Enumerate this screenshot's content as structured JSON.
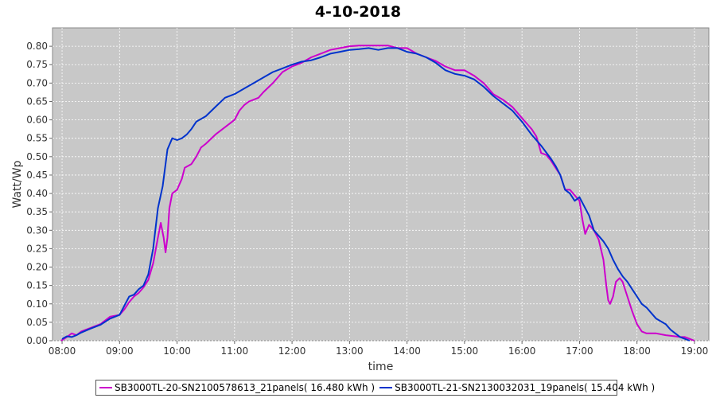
{
  "chart_data": {
    "type": "line",
    "title": "4-10-2018",
    "xlabel": "time",
    "ylabel": "Watt/Wp",
    "xlim": [
      "07:50",
      "19:15"
    ],
    "ylim": [
      0,
      0.85
    ],
    "grid": true,
    "legend_position": "bottom",
    "x_ticks": [
      "08:00",
      "09:00",
      "10:00",
      "11:00",
      "12:00",
      "13:00",
      "14:00",
      "15:00",
      "16:00",
      "17:00",
      "18:00",
      "19:00"
    ],
    "y_ticks": [
      "0.00",
      "0.05",
      "0.10",
      "0.15",
      "0.20",
      "0.25",
      "0.30",
      "0.35",
      "0.40",
      "0.45",
      "0.50",
      "0.55",
      "0.60",
      "0.65",
      "0.70",
      "0.75",
      "0.80"
    ],
    "series": [
      {
        "name": "SB3000TL-20-SN2100578613_21panels( 16.480 kWh )",
        "color": "#cc00cc",
        "points": [
          [
            "07:59",
            0.0
          ],
          [
            "08:05",
            0.01
          ],
          [
            "08:10",
            0.02
          ],
          [
            "08:15",
            0.015
          ],
          [
            "08:20",
            0.025
          ],
          [
            "08:30",
            0.035
          ],
          [
            "08:40",
            0.045
          ],
          [
            "08:50",
            0.065
          ],
          [
            "09:00",
            0.07
          ],
          [
            "09:05",
            0.085
          ],
          [
            "09:10",
            0.105
          ],
          [
            "09:15",
            0.12
          ],
          [
            "09:20",
            0.13
          ],
          [
            "09:25",
            0.145
          ],
          [
            "09:30",
            0.165
          ],
          [
            "09:35",
            0.21
          ],
          [
            "09:40",
            0.28
          ],
          [
            "09:43",
            0.32
          ],
          [
            "09:46",
            0.28
          ],
          [
            "09:48",
            0.24
          ],
          [
            "09:50",
            0.28
          ],
          [
            "09:52",
            0.36
          ],
          [
            "09:55",
            0.4
          ],
          [
            "10:00",
            0.41
          ],
          [
            "10:05",
            0.44
          ],
          [
            "10:08",
            0.47
          ],
          [
            "10:15",
            0.48
          ],
          [
            "10:20",
            0.5
          ],
          [
            "10:25",
            0.525
          ],
          [
            "10:30",
            0.535
          ],
          [
            "10:40",
            0.56
          ],
          [
            "10:50",
            0.58
          ],
          [
            "11:00",
            0.6
          ],
          [
            "11:05",
            0.625
          ],
          [
            "11:10",
            0.64
          ],
          [
            "11:15",
            0.65
          ],
          [
            "11:20",
            0.655
          ],
          [
            "11:25",
            0.66
          ],
          [
            "11:30",
            0.675
          ],
          [
            "11:40",
            0.7
          ],
          [
            "11:50",
            0.73
          ],
          [
            "12:00",
            0.745
          ],
          [
            "12:10",
            0.755
          ],
          [
            "12:20",
            0.77
          ],
          [
            "12:30",
            0.78
          ],
          [
            "12:40",
            0.79
          ],
          [
            "12:50",
            0.795
          ],
          [
            "13:00",
            0.8
          ],
          [
            "13:10",
            0.802
          ],
          [
            "13:20",
            0.802
          ],
          [
            "13:30",
            0.802
          ],
          [
            "13:40",
            0.802
          ],
          [
            "13:50",
            0.795
          ],
          [
            "14:00",
            0.795
          ],
          [
            "14:10",
            0.78
          ],
          [
            "14:20",
            0.77
          ],
          [
            "14:30",
            0.76
          ],
          [
            "14:40",
            0.745
          ],
          [
            "14:50",
            0.735
          ],
          [
            "15:00",
            0.735
          ],
          [
            "15:10",
            0.72
          ],
          [
            "15:20",
            0.7
          ],
          [
            "15:30",
            0.67
          ],
          [
            "15:40",
            0.655
          ],
          [
            "15:50",
            0.635
          ],
          [
            "16:00",
            0.605
          ],
          [
            "16:10",
            0.575
          ],
          [
            "16:15",
            0.555
          ],
          [
            "16:20",
            0.51
          ],
          [
            "16:25",
            0.505
          ],
          [
            "16:30",
            0.49
          ],
          [
            "16:35",
            0.47
          ],
          [
            "16:40",
            0.45
          ],
          [
            "16:45",
            0.41
          ],
          [
            "16:50",
            0.41
          ],
          [
            "16:55",
            0.395
          ],
          [
            "17:00",
            0.38
          ],
          [
            "17:03",
            0.33
          ],
          [
            "17:06",
            0.29
          ],
          [
            "17:10",
            0.315
          ],
          [
            "17:15",
            0.3
          ],
          [
            "17:20",
            0.275
          ],
          [
            "17:25",
            0.22
          ],
          [
            "17:28",
            0.15
          ],
          [
            "17:30",
            0.11
          ],
          [
            "17:32",
            0.1
          ],
          [
            "17:35",
            0.12
          ],
          [
            "17:38",
            0.16
          ],
          [
            "17:42",
            0.17
          ],
          [
            "17:45",
            0.16
          ],
          [
            "17:50",
            0.12
          ],
          [
            "17:55",
            0.08
          ],
          [
            "18:00",
            0.045
          ],
          [
            "18:05",
            0.025
          ],
          [
            "18:10",
            0.02
          ],
          [
            "18:20",
            0.02
          ],
          [
            "18:30",
            0.015
          ],
          [
            "18:40",
            0.012
          ],
          [
            "18:45",
            0.01
          ],
          [
            "18:50",
            0.01
          ],
          [
            "18:55",
            0.005
          ],
          [
            "19:00",
            0.0
          ]
        ]
      },
      {
        "name": "SB3000TL-21-SN2130032031_19panels( 15.404 kWh )",
        "color": "#0033cc",
        "points": [
          [
            "08:00",
            0.005
          ],
          [
            "08:05",
            0.012
          ],
          [
            "08:10",
            0.01
          ],
          [
            "08:15",
            0.015
          ],
          [
            "08:20",
            0.022
          ],
          [
            "08:30",
            0.033
          ],
          [
            "08:40",
            0.043
          ],
          [
            "08:50",
            0.06
          ],
          [
            "09:00",
            0.07
          ],
          [
            "09:05",
            0.095
          ],
          [
            "09:10",
            0.12
          ],
          [
            "09:15",
            0.125
          ],
          [
            "09:20",
            0.14
          ],
          [
            "09:25",
            0.15
          ],
          [
            "09:30",
            0.18
          ],
          [
            "09:35",
            0.25
          ],
          [
            "09:40",
            0.36
          ],
          [
            "09:45",
            0.42
          ],
          [
            "09:50",
            0.52
          ],
          [
            "09:55",
            0.55
          ],
          [
            "10:00",
            0.545
          ],
          [
            "10:05",
            0.55
          ],
          [
            "10:10",
            0.56
          ],
          [
            "10:15",
            0.575
          ],
          [
            "10:20",
            0.595
          ],
          [
            "10:30",
            0.61
          ],
          [
            "10:40",
            0.635
          ],
          [
            "10:50",
            0.66
          ],
          [
            "11:00",
            0.67
          ],
          [
            "11:10",
            0.685
          ],
          [
            "11:20",
            0.7
          ],
          [
            "11:30",
            0.715
          ],
          [
            "11:40",
            0.73
          ],
          [
            "11:50",
            0.74
          ],
          [
            "12:00",
            0.75
          ],
          [
            "12:10",
            0.758
          ],
          [
            "12:20",
            0.762
          ],
          [
            "12:30",
            0.77
          ],
          [
            "12:40",
            0.78
          ],
          [
            "12:50",
            0.785
          ],
          [
            "13:00",
            0.79
          ],
          [
            "13:10",
            0.792
          ],
          [
            "13:20",
            0.795
          ],
          [
            "13:30",
            0.79
          ],
          [
            "13:40",
            0.795
          ],
          [
            "13:50",
            0.795
          ],
          [
            "14:00",
            0.785
          ],
          [
            "14:10",
            0.78
          ],
          [
            "14:20",
            0.77
          ],
          [
            "14:30",
            0.755
          ],
          [
            "14:40",
            0.735
          ],
          [
            "14:50",
            0.725
          ],
          [
            "15:00",
            0.72
          ],
          [
            "15:10",
            0.71
          ],
          [
            "15:20",
            0.69
          ],
          [
            "15:30",
            0.665
          ],
          [
            "15:40",
            0.645
          ],
          [
            "15:50",
            0.625
          ],
          [
            "16:00",
            0.595
          ],
          [
            "16:10",
            0.56
          ],
          [
            "16:20",
            0.53
          ],
          [
            "16:30",
            0.495
          ],
          [
            "16:35",
            0.475
          ],
          [
            "16:40",
            0.45
          ],
          [
            "16:45",
            0.41
          ],
          [
            "16:50",
            0.4
          ],
          [
            "16:55",
            0.38
          ],
          [
            "17:00",
            0.39
          ],
          [
            "17:05",
            0.365
          ],
          [
            "17:10",
            0.34
          ],
          [
            "17:15",
            0.3
          ],
          [
            "17:20",
            0.285
          ],
          [
            "17:25",
            0.27
          ],
          [
            "17:30",
            0.25
          ],
          [
            "17:35",
            0.22
          ],
          [
            "17:40",
            0.195
          ],
          [
            "17:45",
            0.175
          ],
          [
            "17:50",
            0.16
          ],
          [
            "17:55",
            0.14
          ],
          [
            "18:00",
            0.12
          ],
          [
            "18:05",
            0.1
          ],
          [
            "18:10",
            0.09
          ],
          [
            "18:15",
            0.075
          ],
          [
            "18:20",
            0.06
          ],
          [
            "18:30",
            0.045
          ],
          [
            "18:35",
            0.03
          ],
          [
            "18:40",
            0.02
          ],
          [
            "18:45",
            0.01
          ],
          [
            "18:50",
            0.005
          ],
          [
            "18:55",
            0.0
          ]
        ]
      }
    ]
  }
}
